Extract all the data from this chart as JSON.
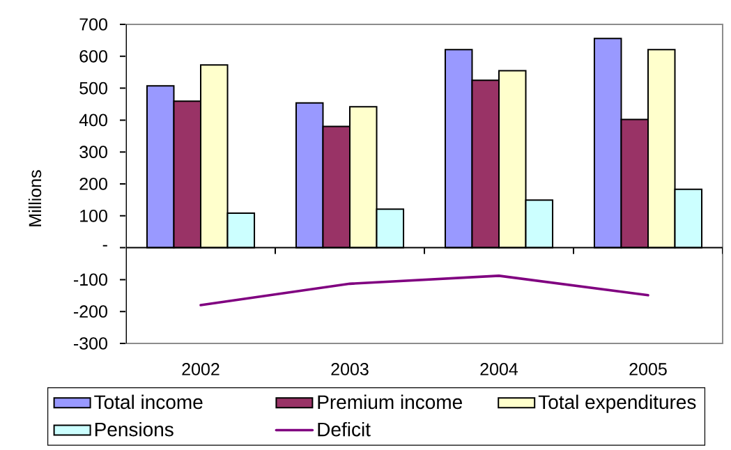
{
  "chart_data": {
    "type": "bar",
    "categories": [
      "2002",
      "2003",
      "2004",
      "2005"
    ],
    "ylabel": "Millions",
    "series": [
      {
        "name": "Total income",
        "color": "#9999ff",
        "values": [
          507,
          454,
          621,
          656
        ]
      },
      {
        "name": "Premium income",
        "color": "#993366",
        "values": [
          459,
          380,
          525,
          402
        ]
      },
      {
        "name": "Total expenditures",
        "color": "#ffffcc",
        "values": [
          573,
          442,
          555,
          621
        ]
      },
      {
        "name": "Pensions",
        "color": "#ccffff",
        "values": [
          108,
          121,
          149,
          183
        ]
      },
      {
        "name": "Deficit",
        "type": "line",
        "color": "#800080",
        "values": [
          -180,
          -113,
          -88,
          -149
        ]
      }
    ],
    "ylim": [
      -300,
      700
    ],
    "yticks": [
      -300,
      -200,
      -100,
      {
        "value": 0,
        "label": "-"
      },
      100,
      200,
      300,
      400,
      500,
      600,
      700
    ],
    "legend": "bottom"
  }
}
